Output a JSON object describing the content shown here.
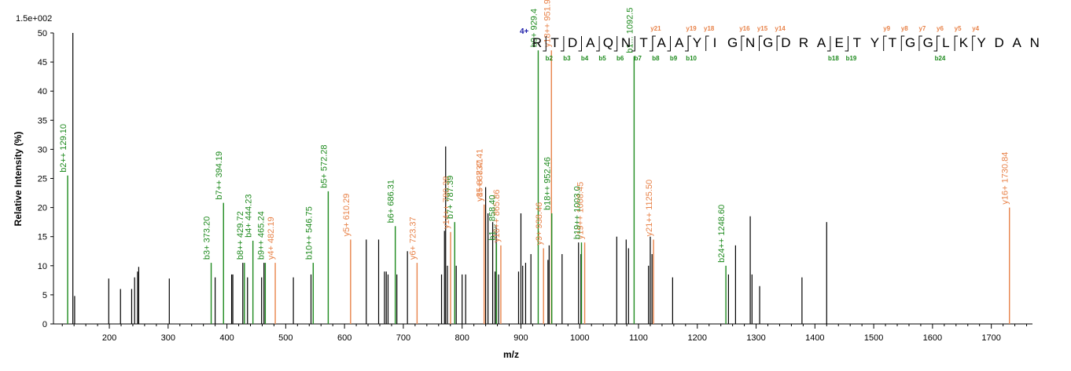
{
  "chart_data": {
    "type": "bar",
    "xlabel": "m/z",
    "ylabel": "Relative Intensity (%)",
    "scale_label": "1.5e+002",
    "xlim": [
      105,
      1770
    ],
    "ylim": [
      0,
      50
    ],
    "x_ticks": [
      200,
      300,
      400,
      500,
      600,
      700,
      800,
      900,
      1000,
      1100,
      1200,
      1300,
      1400,
      1500,
      1600,
      1700
    ],
    "y_ticks": [
      0,
      5,
      10,
      15,
      20,
      25,
      30,
      35,
      40,
      45,
      50
    ],
    "colors": {
      "b": "#1e8a1e",
      "y": "#e8834a",
      "unassigned": "#000000",
      "charge": "#1a1aa8"
    },
    "unassigned_peaks": [
      {
        "x": 138,
        "y": 50
      },
      {
        "x": 141,
        "y": 4.8
      },
      {
        "x": 199,
        "y": 7.8
      },
      {
        "x": 219,
        "y": 6
      },
      {
        "x": 238,
        "y": 6
      },
      {
        "x": 243,
        "y": 8
      },
      {
        "x": 248,
        "y": 9
      },
      {
        "x": 250,
        "y": 9.8
      },
      {
        "x": 302,
        "y": 7.8
      },
      {
        "x": 380,
        "y": 8
      },
      {
        "x": 408,
        "y": 8.5
      },
      {
        "x": 410,
        "y": 8.5
      },
      {
        "x": 427,
        "y": 10.5
      },
      {
        "x": 435,
        "y": 8
      },
      {
        "x": 459,
        "y": 8
      },
      {
        "x": 463,
        "y": 10.5
      },
      {
        "x": 513,
        "y": 8
      },
      {
        "x": 543,
        "y": 8.5
      },
      {
        "x": 637,
        "y": 14.5
      },
      {
        "x": 658,
        "y": 14.5
      },
      {
        "x": 668,
        "y": 9
      },
      {
        "x": 671,
        "y": 9
      },
      {
        "x": 674,
        "y": 8.5
      },
      {
        "x": 689,
        "y": 8.5
      },
      {
        "x": 707,
        "y": 12.5
      },
      {
        "x": 765,
        "y": 8.5
      },
      {
        "x": 770,
        "y": 16
      },
      {
        "x": 772,
        "y": 30.5
      },
      {
        "x": 775,
        "y": 10
      },
      {
        "x": 790,
        "y": 10
      },
      {
        "x": 800,
        "y": 8.5
      },
      {
        "x": 806,
        "y": 8.5
      },
      {
        "x": 840,
        "y": 23.5
      },
      {
        "x": 844,
        "y": 19
      },
      {
        "x": 852,
        "y": 17.5
      },
      {
        "x": 856,
        "y": 9
      },
      {
        "x": 858,
        "y": 17
      },
      {
        "x": 862,
        "y": 8.5
      },
      {
        "x": 896,
        "y": 9
      },
      {
        "x": 900,
        "y": 19
      },
      {
        "x": 903,
        "y": 10
      },
      {
        "x": 908,
        "y": 10.5
      },
      {
        "x": 917,
        "y": 12
      },
      {
        "x": 946,
        "y": 11
      },
      {
        "x": 948,
        "y": 13.5
      },
      {
        "x": 970,
        "y": 12
      },
      {
        "x": 998,
        "y": 14
      },
      {
        "x": 1002,
        "y": 12
      },
      {
        "x": 1063,
        "y": 15
      },
      {
        "x": 1079,
        "y": 14.5
      },
      {
        "x": 1083,
        "y": 13
      },
      {
        "x": 1117,
        "y": 10
      },
      {
        "x": 1120,
        "y": 15
      },
      {
        "x": 1123,
        "y": 12
      },
      {
        "x": 1158,
        "y": 8
      },
      {
        "x": 1253,
        "y": 8.5
      },
      {
        "x": 1265,
        "y": 13.5
      },
      {
        "x": 1290,
        "y": 18.5
      },
      {
        "x": 1293,
        "y": 8.5
      },
      {
        "x": 1306,
        "y": 6.5
      },
      {
        "x": 1378,
        "y": 8
      },
      {
        "x": 1420,
        "y": 17.5
      }
    ],
    "b_ions": [
      {
        "x": 129.1,
        "y": 25.5,
        "label": "b2++ 129.10"
      },
      {
        "x": 373.2,
        "y": 10.5,
        "label": "b3+ 373.20"
      },
      {
        "x": 394.19,
        "y": 20.8,
        "label": "b7++ 394.19"
      },
      {
        "x": 429.72,
        "y": 10.5,
        "label": "b8++ 429.72"
      },
      {
        "x": 444.23,
        "y": 14.3,
        "label": "b4+ 444.23"
      },
      {
        "x": 465.24,
        "y": 10.5,
        "label": "b9++ 465.24"
      },
      {
        "x": 546.75,
        "y": 10.5,
        "label": "b10++ 546.75"
      },
      {
        "x": 572.28,
        "y": 22.8,
        "label": "b5+ 572.28"
      },
      {
        "x": 686.31,
        "y": 16.8,
        "label": "b6+ 686.31"
      },
      {
        "x": 787.39,
        "y": 17.5,
        "label": "b7+ 787.39"
      },
      {
        "x": 858.4,
        "y": 13.8,
        "label": "b1... 858.40"
      },
      {
        "x": 929.4,
        "y": 47,
        "label": "b9+ 929.4"
      },
      {
        "x": 952.46,
        "y": 19,
        "label": "b18++ 952.46"
      },
      {
        "x": 1003.0,
        "y": 14,
        "label": "b19++ 1003.0"
      },
      {
        "x": 1092.5,
        "y": 46,
        "label": "b1... 1092.5"
      },
      {
        "x": 1248.6,
        "y": 10,
        "label": "b24++ 1248.60"
      }
    ],
    "y_ions": [
      {
        "x": 482.19,
        "y": 10.5,
        "label": "y4+ 482.19"
      },
      {
        "x": 610.29,
        "y": 14.5,
        "label": "y5+ 610.29"
      },
      {
        "x": 723.37,
        "y": 10.5,
        "label": "y6+ 723.37"
      },
      {
        "x": 780.38,
        "y": 15.8,
        "label": "y14++ 780.38"
      },
      {
        "x": 837.41,
        "y": 20.5,
        "label": "y8+ 837.41"
      },
      {
        "x": 837.41,
        "y": 20.5,
        "label": "y15++ 837.41"
      },
      {
        "x": 865.86,
        "y": 13.5,
        "label": "y16++ 865.86"
      },
      {
        "x": 938.46,
        "y": 13,
        "label": "y9+ 938.46"
      },
      {
        "x": 951.9,
        "y": 47,
        "label": "y18++ 951.9"
      },
      {
        "x": 1008.45,
        "y": 14,
        "label": "y19++ 1008.45"
      },
      {
        "x": 1125.5,
        "y": 14.5,
        "label": "y21++ 1125.50"
      },
      {
        "x": 1730.84,
        "y": 20,
        "label": "y16+ 1730.84"
      }
    ],
    "sequence": {
      "charge": "4+",
      "letters": [
        "R",
        "T",
        "D",
        "A",
        "Q",
        "N",
        "T",
        "A",
        "A",
        "Y",
        "I",
        "G",
        "N",
        "G",
        "D",
        "R",
        "A",
        "E",
        "T",
        "Y",
        "T",
        "G",
        "G",
        "L",
        "K",
        "Y",
        "D",
        "A",
        "N"
      ],
      "b_labels": [
        {
          "after": 1,
          "text": "b2"
        },
        {
          "after": 2,
          "text": "b3"
        },
        {
          "after": 3,
          "text": "b4"
        },
        {
          "after": 4,
          "text": "b5"
        },
        {
          "after": 5,
          "text": "b6"
        },
        {
          "after": 6,
          "text": "b7"
        },
        {
          "after": 7,
          "text": "b8"
        },
        {
          "after": 8,
          "text": "b9"
        },
        {
          "after": 9,
          "text": "b10"
        },
        {
          "after": 17,
          "text": "b18"
        },
        {
          "after": 18,
          "text": "b19"
        },
        {
          "after": 23,
          "text": "b24"
        }
      ],
      "y_labels": [
        {
          "after": 7,
          "text": "y21"
        },
        {
          "after": 9,
          "text": "y19"
        },
        {
          "after": 10,
          "text": "y18"
        },
        {
          "after": 12,
          "text": "y16"
        },
        {
          "after": 13,
          "text": "y15"
        },
        {
          "after": 14,
          "text": "y14"
        },
        {
          "after": 20,
          "text": "y9"
        },
        {
          "after": 21,
          "text": "y8"
        },
        {
          "after": 22,
          "text": "y7"
        },
        {
          "after": 23,
          "text": "y6"
        },
        {
          "after": 24,
          "text": "y5"
        },
        {
          "after": 25,
          "text": "y4"
        }
      ]
    }
  }
}
